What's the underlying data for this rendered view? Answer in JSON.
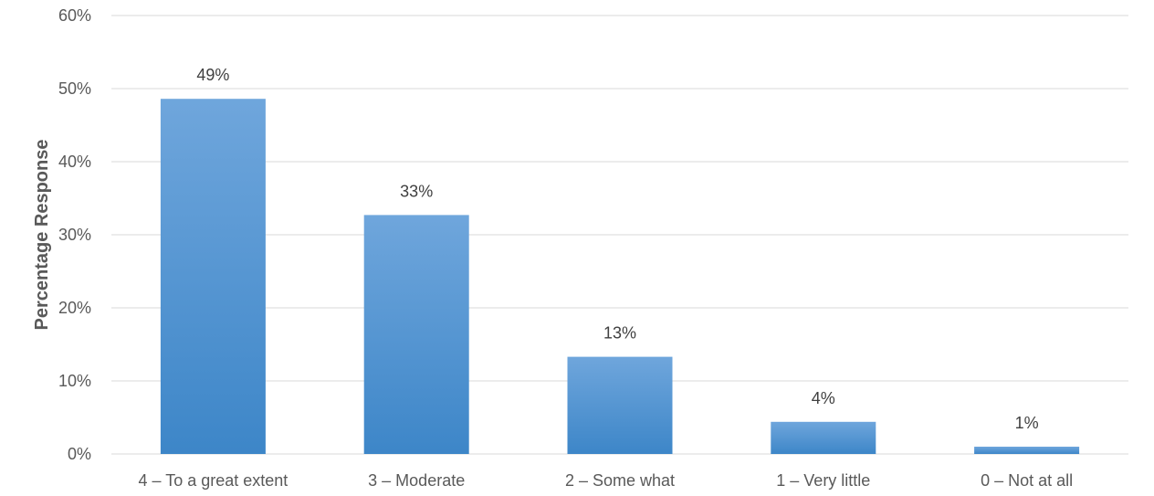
{
  "chart_data": {
    "type": "bar",
    "title": "",
    "xlabel": "",
    "ylabel": "Percentage Response",
    "categories": [
      "4 – To a great extent",
      "3 – Moderate",
      "2 – Some what",
      "1 – Very little",
      "0 – Not at all"
    ],
    "values": [
      48.6,
      32.7,
      13.3,
      4.4,
      1.0
    ],
    "data_labels": [
      "49%",
      "33%",
      "13%",
      "4%",
      "1%"
    ],
    "yticks": [
      0,
      10,
      20,
      30,
      40,
      50,
      60
    ],
    "ytick_labels": [
      "0%",
      "10%",
      "20%",
      "30%",
      "40%",
      "50%",
      "60%"
    ],
    "ylim": [
      0,
      60
    ],
    "grid": true,
    "legend": "none",
    "colors": {
      "bar_top": "#6fa6dc",
      "bar_bottom": "#3d86c8",
      "grid": "#d9d9d9",
      "axis": "#d9d9d9"
    }
  }
}
